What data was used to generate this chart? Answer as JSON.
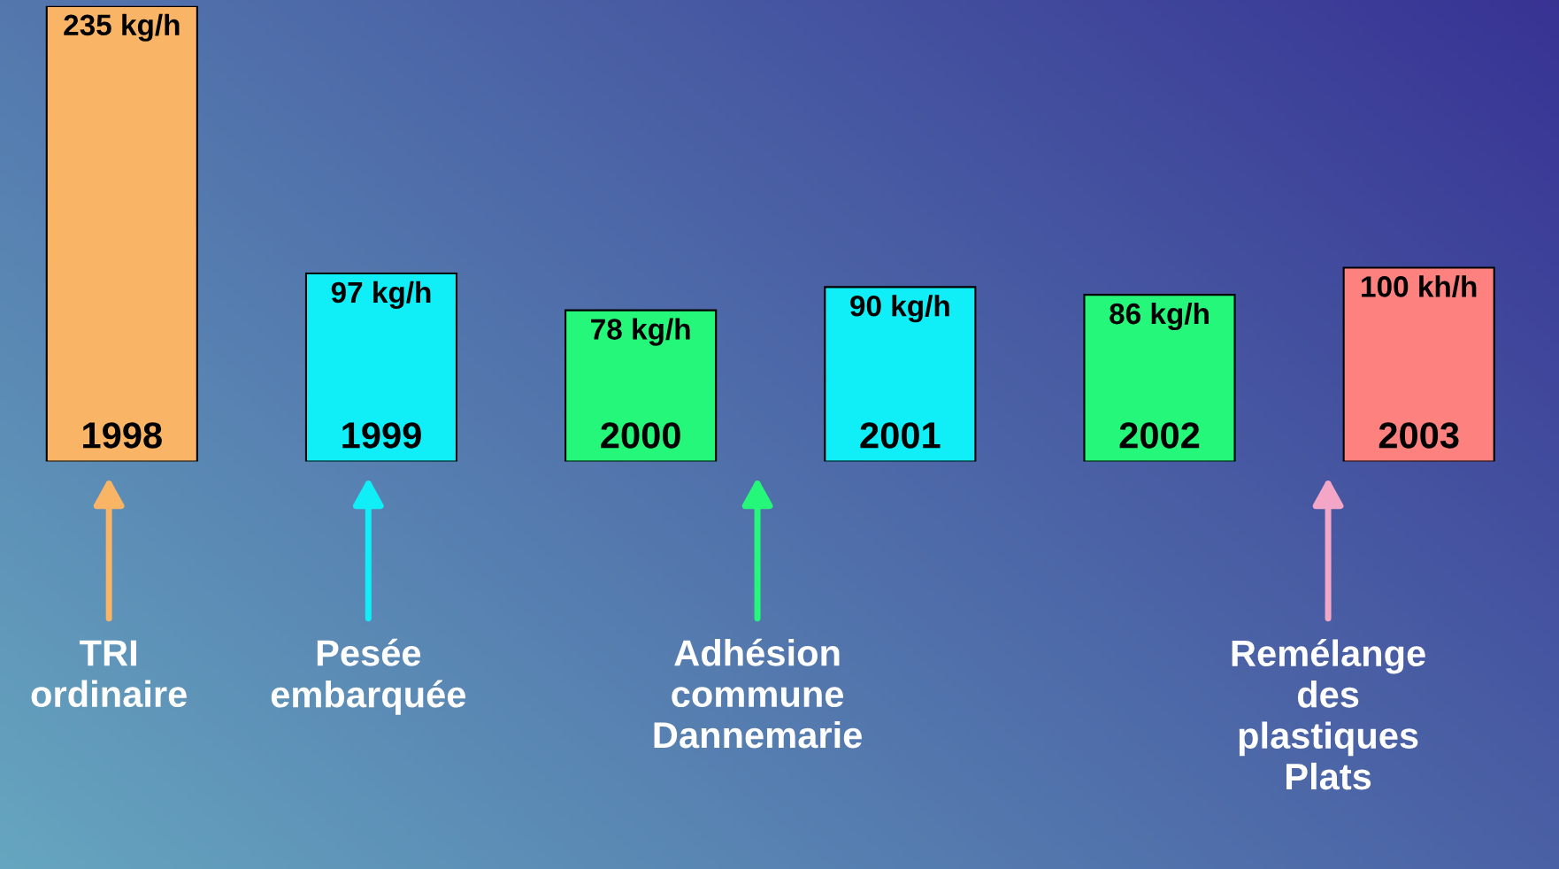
{
  "chart_data": {
    "type": "bar",
    "categories": [
      "1998",
      "1999",
      "2000",
      "2001",
      "2002",
      "2003"
    ],
    "values": [
      235,
      97,
      78,
      90,
      86,
      100
    ],
    "value_labels": [
      "235 kg/h",
      "97 kg/h",
      "78 kg/h",
      "90 kg/h",
      "86 kg/h",
      "100 kh/h"
    ],
    "colors": [
      "#f9b466",
      "#10eef8",
      "#25f77a",
      "#10eef8",
      "#25f77a",
      "#fd817f"
    ],
    "annotations": [
      "TRI\nordinaire",
      "Pesée\nembarquée",
      "Adhésion\ncommune\nDannemarie",
      "Remélange\ndes\nplastiques\nPlats"
    ],
    "legend": false
  }
}
